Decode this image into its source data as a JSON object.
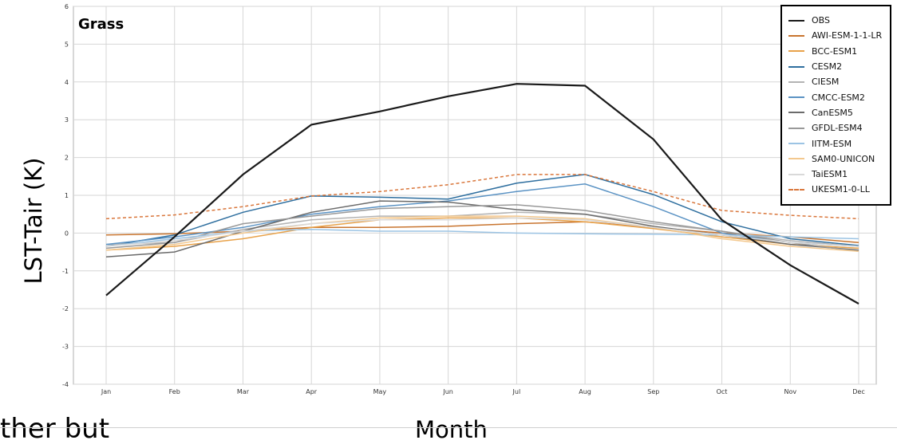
{
  "page": {
    "cropped_left_text": "ther but",
    "crop_rule_visible": true
  },
  "chart_data": {
    "type": "line",
    "title": "Grass",
    "xlabel": "Month",
    "ylabel": "LST-Tair (K)",
    "ylim": [
      -4,
      6
    ],
    "yticks": [
      -4,
      -3,
      -2,
      -1,
      0,
      1,
      2,
      3,
      4,
      5,
      6
    ],
    "grid": true,
    "legend_position": "top-right",
    "categories": [
      "Jan",
      "Feb",
      "Mar",
      "Apr",
      "May",
      "Jun",
      "Jul",
      "Aug",
      "Sep",
      "Oct",
      "Nov",
      "Dec"
    ],
    "series": [
      {
        "name": "OBS",
        "color": "#1a1a1a",
        "dashed": false,
        "values": [
          -1.65,
          -0.1,
          1.55,
          2.87,
          3.22,
          3.62,
          3.95,
          3.9,
          2.48,
          0.35,
          -0.85,
          -1.87
        ]
      },
      {
        "name": "AWI-ESM-1-1-LR",
        "color": "#c8742e",
        "dashed": false,
        "values": [
          -0.05,
          -0.02,
          0.05,
          0.15,
          0.15,
          0.18,
          0.25,
          0.3,
          0.15,
          0.0,
          -0.1,
          -0.25
        ]
      },
      {
        "name": "BCC-ESM1",
        "color": "#e8a24a",
        "dashed": false,
        "values": [
          -0.45,
          -0.35,
          -0.15,
          0.15,
          0.35,
          0.4,
          0.4,
          0.3,
          0.12,
          -0.1,
          -0.3,
          -0.4
        ]
      },
      {
        "name": "CESM2",
        "color": "#2f6f9f",
        "dashed": false,
        "values": [
          -0.35,
          -0.05,
          0.55,
          0.98,
          0.95,
          0.9,
          1.32,
          1.55,
          1.02,
          0.3,
          -0.15,
          -0.33
        ]
      },
      {
        "name": "CIESM",
        "color": "#b3b3b3",
        "dashed": false,
        "values": [
          -0.3,
          -0.25,
          0.1,
          0.35,
          0.45,
          0.45,
          0.55,
          0.5,
          0.25,
          0.05,
          -0.2,
          -0.35
        ]
      },
      {
        "name": "CMCC-ESM2",
        "color": "#5b93c4",
        "dashed": false,
        "values": [
          -0.3,
          -0.1,
          0.15,
          0.5,
          0.7,
          0.85,
          1.1,
          1.3,
          0.7,
          0.0,
          -0.25,
          -0.35
        ]
      },
      {
        "name": "CanESM5",
        "color": "#6b6b6b",
        "dashed": false,
        "values": [
          -0.63,
          -0.5,
          0.05,
          0.55,
          0.85,
          0.82,
          0.62,
          0.5,
          0.18,
          -0.05,
          -0.3,
          -0.45
        ]
      },
      {
        "name": "GFDL-ESM4",
        "color": "#999999",
        "dashed": false,
        "values": [
          -0.4,
          -0.25,
          0.25,
          0.45,
          0.65,
          0.7,
          0.75,
          0.6,
          0.3,
          0.05,
          -0.25,
          -0.48
        ]
      },
      {
        "name": "IITM-ESM",
        "color": "#9cc4e4",
        "dashed": false,
        "values": [
          -0.35,
          -0.15,
          0.05,
          0.1,
          0.05,
          0.05,
          0.0,
          -0.02,
          -0.03,
          -0.05,
          -0.1,
          -0.15
        ]
      },
      {
        "name": "SAM0-UNICON",
        "color": "#f3c88e",
        "dashed": false,
        "values": [
          -0.45,
          -0.3,
          0.0,
          0.25,
          0.4,
          0.45,
          0.45,
          0.38,
          0.15,
          -0.15,
          -0.35,
          -0.48
        ]
      },
      {
        "name": "TaiESM1",
        "color": "#d9d9d9",
        "dashed": false,
        "values": [
          -0.35,
          -0.2,
          0.05,
          0.25,
          0.35,
          0.35,
          0.4,
          0.35,
          0.15,
          -0.05,
          -0.25,
          -0.35
        ]
      },
      {
        "name": "UKESM1-0-LL",
        "color": "#d9763b",
        "dashed": true,
        "values": [
          0.38,
          0.48,
          0.7,
          0.98,
          1.1,
          1.28,
          1.55,
          1.55,
          1.1,
          0.6,
          0.47,
          0.38
        ]
      }
    ]
  }
}
